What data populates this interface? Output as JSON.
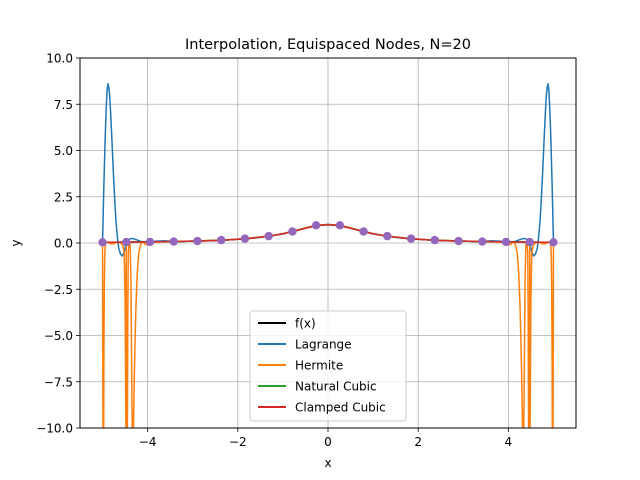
{
  "chart_data": {
    "type": "line",
    "title": "Interpolation, Equispaced Nodes, N=20",
    "xlabel": "x",
    "ylabel": "y",
    "xlim": [
      -5.5,
      5.5
    ],
    "ylim": [
      -10,
      10
    ],
    "grid": true,
    "legend_position": "lower center",
    "x_ticks": [
      {
        "value": -4,
        "label": "−4"
      },
      {
        "value": -2,
        "label": "−2"
      },
      {
        "value": 0,
        "label": "0"
      },
      {
        "value": 2,
        "label": "2"
      },
      {
        "value": 4,
        "label": "4"
      }
    ],
    "y_ticks": [
      {
        "value": -10,
        "label": "−10.0"
      },
      {
        "value": -7.5,
        "label": "−7.5"
      },
      {
        "value": -5,
        "label": "−5.0"
      },
      {
        "value": -2.5,
        "label": "−2.5"
      },
      {
        "value": 0,
        "label": "0.0"
      },
      {
        "value": 2.5,
        "label": "2.5"
      },
      {
        "value": 5,
        "label": "5.0"
      },
      {
        "value": 7.5,
        "label": "7.5"
      },
      {
        "value": 10,
        "label": "10.0"
      }
    ],
    "node_color": "#9467bd",
    "nodes": {
      "x": [
        -5,
        -4.474,
        -3.947,
        -3.421,
        -2.895,
        -2.368,
        -1.842,
        -1.316,
        -0.789,
        -0.263,
        0.263,
        0.789,
        1.316,
        1.842,
        2.368,
        2.895,
        3.421,
        3.947,
        4.474,
        5
      ],
      "y": [
        0.038,
        0.048,
        0.06,
        0.079,
        0.107,
        0.157,
        0.238,
        0.372,
        0.621,
        0.956,
        0.956,
        0.621,
        0.372,
        0.238,
        0.157,
        0.107,
        0.079,
        0.06,
        0.048,
        0.038
      ]
    },
    "series": [
      {
        "name": "f(x)",
        "color": "#000000",
        "x": [
          -5,
          -4.75,
          -4.5,
          -4.25,
          -4,
          -3.75,
          -3.5,
          -3.25,
          -3,
          -2.75,
          -2.5,
          -2.25,
          -2,
          -1.75,
          -1.5,
          -1.25,
          -1,
          -0.75,
          -0.5,
          -0.25,
          0,
          0.25,
          0.5,
          0.75,
          1,
          1.25,
          1.5,
          1.75,
          2,
          2.25,
          2.5,
          2.75,
          3,
          3.25,
          3.5,
          3.75,
          4,
          4.25,
          4.5,
          4.75,
          5
        ],
        "y": [
          0.038,
          0.042,
          0.047,
          0.052,
          0.059,
          0.066,
          0.075,
          0.086,
          0.1,
          0.117,
          0.138,
          0.165,
          0.2,
          0.246,
          0.308,
          0.39,
          0.5,
          0.64,
          0.8,
          0.941,
          1,
          0.941,
          0.8,
          0.64,
          0.5,
          0.39,
          0.308,
          0.246,
          0.2,
          0.165,
          0.138,
          0.117,
          0.1,
          0.086,
          0.075,
          0.066,
          0.059,
          0.052,
          0.047,
          0.042,
          0.038
        ]
      },
      {
        "name": "Lagrange",
        "color": "#1f77b4",
        "x": [
          -5,
          -4.97,
          -4.94,
          -4.92,
          -4.9,
          -4.88,
          -4.86,
          -4.84,
          -4.82,
          -4.8,
          -4.78,
          -4.76,
          -4.74,
          -4.72,
          -4.7,
          -4.67,
          -4.64,
          -4.6,
          -4.56,
          -4.52,
          -4.474,
          -4.42,
          -4.36,
          -4.3,
          -4.22,
          -4.14,
          -4.05,
          -3.947,
          -3.8,
          -3.6,
          -3.421,
          -3.2,
          -2.895,
          -2.6,
          -2.368,
          -2.1,
          -1.842,
          -1.6,
          -1.316,
          -1.05,
          -0.789,
          -0.5,
          -0.263,
          0,
          0.263,
          0.5,
          0.789,
          1.05,
          1.316,
          1.6,
          1.842,
          2.1,
          2.368,
          2.6,
          2.895,
          3.2,
          3.421,
          3.6,
          3.8,
          3.947,
          4.05,
          4.14,
          4.22,
          4.3,
          4.36,
          4.42,
          4.474,
          4.52,
          4.56,
          4.6,
          4.64,
          4.67,
          4.7,
          4.72,
          4.74,
          4.76,
          4.78,
          4.8,
          4.82,
          4.84,
          4.86,
          4.88,
          4.9,
          4.92,
          4.94,
          4.97,
          5
        ],
        "y": [
          0.04,
          3.2,
          5.8,
          7.2,
          8.2,
          8.6,
          8.4,
          7.9,
          7,
          6,
          4.9,
          3.8,
          2.8,
          1.9,
          1.1,
          0.3,
          -0.3,
          -0.6,
          -0.7,
          -0.5,
          0.05,
          0.18,
          0.25,
          0.22,
          0.15,
          0.08,
          0.05,
          0.06,
          0.1,
          0.12,
          0.079,
          0.09,
          0.107,
          0.14,
          0.157,
          0.19,
          0.238,
          0.3,
          0.372,
          0.47,
          0.621,
          0.82,
          0.956,
          1,
          0.956,
          0.82,
          0.621,
          0.47,
          0.372,
          0.3,
          0.238,
          0.19,
          0.157,
          0.14,
          0.107,
          0.09,
          0.079,
          0.12,
          0.1,
          0.06,
          0.05,
          0.08,
          0.15,
          0.22,
          0.25,
          0.18,
          0.05,
          -0.5,
          -0.7,
          -0.6,
          -0.3,
          0.3,
          1.1,
          1.9,
          2.8,
          3.8,
          4.9,
          6,
          7,
          7.9,
          8.4,
          8.6,
          8.2,
          7.2,
          5.8,
          3.2,
          0.04
        ]
      },
      {
        "name": "Hermite",
        "color": "#ff7f0e",
        "x": [
          -5,
          -4.999,
          -4.996,
          -4.99,
          -4.98,
          -4.975,
          -4.97,
          -4.96,
          -4.95,
          -4.93,
          -4.9,
          -4.87,
          -4.84,
          -4.8,
          -4.76,
          -4.72,
          -4.68,
          -4.64,
          -4.6,
          -4.56,
          -4.52,
          -4.5,
          -4.49,
          -4.48,
          -4.474,
          -4.47,
          -4.46,
          -4.455,
          -4.45,
          -4.445,
          -4.44,
          -4.43,
          -4.41,
          -4.39,
          -4.37,
          -4.36,
          -4.35,
          -4.34,
          -4.33,
          -4.32,
          -4.31,
          -4.29,
          -4.26,
          -4.23,
          -4.2,
          -4.16,
          -4.12,
          -4.08,
          -4.04,
          -4,
          -3.947,
          -3.9,
          -3.85,
          -3.78,
          -3.7,
          -3.6,
          -3.421,
          -3.2,
          -2.895,
          -2.6,
          -2.368,
          -2.1,
          -1.842,
          -1.6,
          -1.316,
          -1.05,
          -0.789,
          -0.5,
          -0.263,
          0,
          0.263,
          0.5,
          0.789,
          1.05,
          1.316,
          1.6,
          1.842,
          2.1,
          2.368,
          2.6,
          2.895,
          3.2,
          3.421,
          3.6,
          3.7,
          3.78,
          3.85,
          3.9,
          3.947,
          4,
          4.04,
          4.08,
          4.12,
          4.16,
          4.2,
          4.23,
          4.26,
          4.29,
          4.31,
          4.32,
          4.33,
          4.34,
          4.35,
          4.36,
          4.37,
          4.39,
          4.41,
          4.43,
          4.44,
          4.445,
          4.45,
          4.455,
          4.46,
          4.47,
          4.474,
          4.48,
          4.49,
          4.5,
          4.52,
          4.56,
          4.6,
          4.64,
          4.68,
          4.72,
          4.76,
          4.8,
          4.84,
          4.87,
          4.9,
          4.93,
          4.95,
          4.96,
          4.97,
          4.975,
          4.98,
          4.99,
          4.996,
          4.999,
          5
        ],
        "y": [
          0.038,
          -2,
          -6,
          -10.5,
          -11,
          -10.5,
          -6,
          -2,
          -0.5,
          0,
          0.05,
          0.02,
          -0.02,
          -0.05,
          -0.05,
          0,
          0.03,
          0.03,
          0,
          -0.1,
          -0.5,
          -3,
          -7,
          -10.5,
          0.048,
          -10.5,
          -11,
          -11,
          -10.5,
          -8,
          -4,
          -0.5,
          0.1,
          0,
          -2,
          -5,
          -8,
          -10.2,
          -11,
          -10.5,
          -9.3,
          -6.5,
          -3.5,
          -1.6,
          -0.6,
          -0.1,
          0.05,
          0,
          -0.1,
          -0.05,
          0.06,
          0.1,
          0.05,
          0.05,
          0.07,
          0.08,
          0.079,
          0.09,
          0.107,
          0.14,
          0.157,
          0.19,
          0.238,
          0.3,
          0.372,
          0.47,
          0.621,
          0.82,
          0.956,
          1,
          0.956,
          0.82,
          0.621,
          0.47,
          0.372,
          0.3,
          0.238,
          0.19,
          0.157,
          0.14,
          0.107,
          0.09,
          0.079,
          0.08,
          0.07,
          0.05,
          0.05,
          0.1,
          0.06,
          -0.05,
          -0.1,
          0,
          0.05,
          -0.1,
          -0.6,
          -1.6,
          -3.5,
          -6.5,
          -9.3,
          -10.5,
          -11,
          -10.2,
          -8,
          -5,
          -2,
          0,
          0.1,
          -0.5,
          -4,
          -8,
          -10.5,
          -11,
          -11,
          -10.5,
          0.048,
          -10.5,
          -7,
          -3,
          -0.5,
          -0.1,
          0,
          0.03,
          0.03,
          0,
          -0.05,
          -0.05,
          -0.02,
          0.02,
          0.05,
          0,
          -0.5,
          -2,
          -6,
          -10.5,
          -11,
          -10.5,
          -6,
          -2,
          0.038
        ]
      },
      {
        "name": "Natural Cubic",
        "color": "#2ca02c",
        "x": [
          -5,
          -4.75,
          -4.5,
          -4.25,
          -4,
          -3.75,
          -3.5,
          -3.25,
          -3,
          -2.75,
          -2.5,
          -2.25,
          -2,
          -1.75,
          -1.5,
          -1.25,
          -1,
          -0.75,
          -0.5,
          -0.25,
          0,
          0.25,
          0.5,
          0.75,
          1,
          1.25,
          1.5,
          1.75,
          2,
          2.25,
          2.5,
          2.75,
          3,
          3.25,
          3.5,
          3.75,
          4,
          4.25,
          4.5,
          4.75,
          5
        ],
        "y": [
          0.038,
          0.042,
          0.047,
          0.052,
          0.059,
          0.066,
          0.075,
          0.086,
          0.1,
          0.117,
          0.138,
          0.165,
          0.2,
          0.246,
          0.308,
          0.39,
          0.5,
          0.64,
          0.8,
          0.94,
          0.99,
          0.94,
          0.8,
          0.64,
          0.5,
          0.39,
          0.308,
          0.246,
          0.2,
          0.165,
          0.138,
          0.117,
          0.1,
          0.086,
          0.075,
          0.066,
          0.059,
          0.052,
          0.047,
          0.042,
          0.038
        ]
      },
      {
        "name": "Clamped Cubic",
        "color": "#d62728",
        "x": [
          -5,
          -4.75,
          -4.5,
          -4.25,
          -4,
          -3.75,
          -3.5,
          -3.25,
          -3,
          -2.75,
          -2.5,
          -2.25,
          -2,
          -1.75,
          -1.5,
          -1.25,
          -1,
          -0.75,
          -0.5,
          -0.25,
          0,
          0.25,
          0.5,
          0.75,
          1,
          1.25,
          1.5,
          1.75,
          2,
          2.25,
          2.5,
          2.75,
          3,
          3.25,
          3.5,
          3.75,
          4,
          4.25,
          4.5,
          4.75,
          5
        ],
        "y": [
          0.038,
          0.042,
          0.047,
          0.052,
          0.059,
          0.066,
          0.075,
          0.086,
          0.1,
          0.117,
          0.138,
          0.165,
          0.2,
          0.246,
          0.308,
          0.39,
          0.5,
          0.64,
          0.8,
          0.94,
          0.99,
          0.94,
          0.8,
          0.64,
          0.5,
          0.39,
          0.308,
          0.246,
          0.2,
          0.165,
          0.138,
          0.117,
          0.1,
          0.086,
          0.075,
          0.066,
          0.059,
          0.052,
          0.047,
          0.042,
          0.038
        ]
      }
    ]
  }
}
